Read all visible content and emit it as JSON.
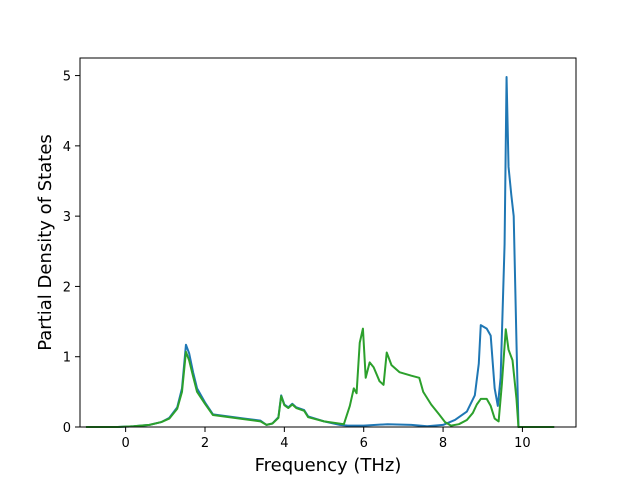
{
  "chart_data": {
    "type": "line",
    "title": "",
    "xlabel": "Frequency (THz)",
    "ylabel": "Partial Density of States",
    "xlim": [
      -1.15,
      11.35
    ],
    "ylim": [
      0,
      5.25
    ],
    "xticks": [
      0,
      2,
      4,
      6,
      8,
      10
    ],
    "yticks": [
      0,
      1,
      2,
      3,
      4,
      5
    ],
    "grid": false,
    "legend": "none",
    "series": [
      {
        "color": "#1f77b4",
        "points": [
          [
            -1.0,
            0.0
          ],
          [
            -0.2,
            0.0
          ],
          [
            0.2,
            0.01
          ],
          [
            0.6,
            0.03
          ],
          [
            0.9,
            0.07
          ],
          [
            1.1,
            0.13
          ],
          [
            1.3,
            0.28
          ],
          [
            1.42,
            0.55
          ],
          [
            1.52,
            1.17
          ],
          [
            1.6,
            1.05
          ],
          [
            1.7,
            0.78
          ],
          [
            1.8,
            0.55
          ],
          [
            2.0,
            0.35
          ],
          [
            2.2,
            0.18
          ],
          [
            2.6,
            0.15
          ],
          [
            3.0,
            0.12
          ],
          [
            3.4,
            0.09
          ],
          [
            3.55,
            0.03
          ],
          [
            3.7,
            0.05
          ],
          [
            3.85,
            0.14
          ],
          [
            3.92,
            0.45
          ],
          [
            4.0,
            0.32
          ],
          [
            4.1,
            0.28
          ],
          [
            4.2,
            0.33
          ],
          [
            4.3,
            0.28
          ],
          [
            4.5,
            0.24
          ],
          [
            4.6,
            0.15
          ],
          [
            5.0,
            0.08
          ],
          [
            5.4,
            0.03
          ],
          [
            5.6,
            0.02
          ],
          [
            6.0,
            0.02
          ],
          [
            6.6,
            0.04
          ],
          [
            7.2,
            0.03
          ],
          [
            7.6,
            0.01
          ],
          [
            8.0,
            0.03
          ],
          [
            8.3,
            0.1
          ],
          [
            8.6,
            0.22
          ],
          [
            8.8,
            0.45
          ],
          [
            8.9,
            0.9
          ],
          [
            8.95,
            1.45
          ],
          [
            9.1,
            1.4
          ],
          [
            9.2,
            1.3
          ],
          [
            9.3,
            0.55
          ],
          [
            9.38,
            0.3
          ],
          [
            9.45,
            0.7
          ],
          [
            9.55,
            2.6
          ],
          [
            9.6,
            4.98
          ],
          [
            9.65,
            3.7
          ],
          [
            9.72,
            3.3
          ],
          [
            9.78,
            3.0
          ],
          [
            9.85,
            1.2
          ],
          [
            9.9,
            0.0
          ],
          [
            10.8,
            0.0
          ]
        ]
      },
      {
        "color": "#2ca02c",
        "points": [
          [
            -1.0,
            0.0
          ],
          [
            -0.2,
            0.0
          ],
          [
            0.2,
            0.01
          ],
          [
            0.6,
            0.03
          ],
          [
            0.9,
            0.07
          ],
          [
            1.1,
            0.12
          ],
          [
            1.3,
            0.26
          ],
          [
            1.42,
            0.5
          ],
          [
            1.52,
            1.07
          ],
          [
            1.6,
            0.95
          ],
          [
            1.7,
            0.72
          ],
          [
            1.8,
            0.5
          ],
          [
            2.0,
            0.33
          ],
          [
            2.2,
            0.17
          ],
          [
            2.6,
            0.14
          ],
          [
            3.0,
            0.11
          ],
          [
            3.4,
            0.08
          ],
          [
            3.55,
            0.03
          ],
          [
            3.7,
            0.05
          ],
          [
            3.85,
            0.13
          ],
          [
            3.92,
            0.44
          ],
          [
            4.0,
            0.31
          ],
          [
            4.1,
            0.27
          ],
          [
            4.2,
            0.32
          ],
          [
            4.3,
            0.27
          ],
          [
            4.5,
            0.23
          ],
          [
            4.6,
            0.14
          ],
          [
            5.0,
            0.08
          ],
          [
            5.5,
            0.04
          ],
          [
            5.65,
            0.3
          ],
          [
            5.75,
            0.55
          ],
          [
            5.82,
            0.48
          ],
          [
            5.9,
            1.2
          ],
          [
            5.98,
            1.4
          ],
          [
            6.05,
            0.7
          ],
          [
            6.15,
            0.92
          ],
          [
            6.25,
            0.85
          ],
          [
            6.4,
            0.65
          ],
          [
            6.5,
            0.6
          ],
          [
            6.58,
            1.06
          ],
          [
            6.7,
            0.88
          ],
          [
            6.9,
            0.78
          ],
          [
            7.2,
            0.73
          ],
          [
            7.4,
            0.7
          ],
          [
            7.5,
            0.5
          ],
          [
            7.7,
            0.32
          ],
          [
            7.9,
            0.18
          ],
          [
            8.05,
            0.07
          ],
          [
            8.2,
            0.02
          ],
          [
            8.4,
            0.04
          ],
          [
            8.6,
            0.1
          ],
          [
            8.75,
            0.2
          ],
          [
            8.85,
            0.32
          ],
          [
            8.95,
            0.4
          ],
          [
            9.1,
            0.4
          ],
          [
            9.2,
            0.3
          ],
          [
            9.3,
            0.12
          ],
          [
            9.4,
            0.08
          ],
          [
            9.48,
            0.6
          ],
          [
            9.58,
            1.39
          ],
          [
            9.65,
            1.1
          ],
          [
            9.75,
            0.95
          ],
          [
            9.85,
            0.4
          ],
          [
            9.9,
            0.0
          ],
          [
            10.8,
            0.0
          ]
        ]
      }
    ]
  }
}
